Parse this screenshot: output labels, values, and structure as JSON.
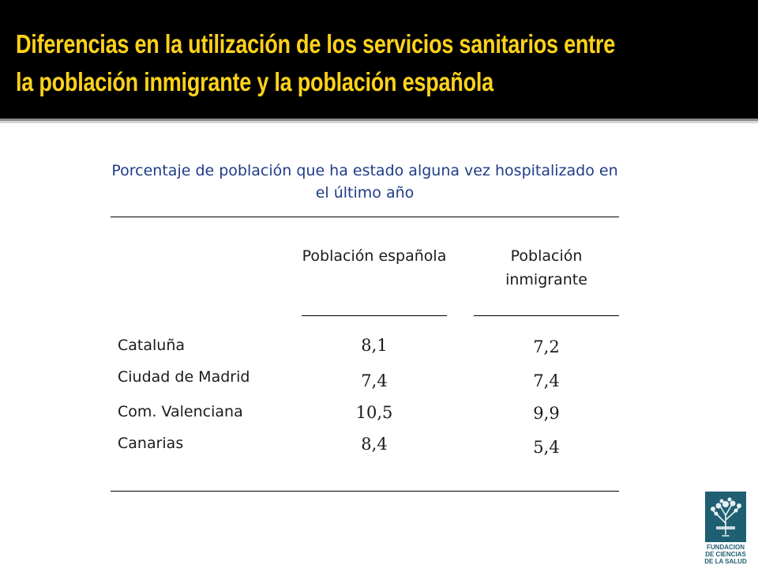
{
  "slide": {
    "title": "Diferencias en la utilización de los servicios sanitarios entre la población inmigrante y la población española",
    "subtitle": "Porcentaje de población que ha estado alguna vez hospitalizado en el último año"
  },
  "table": {
    "columns": [
      "Población española",
      "Población inmigrante"
    ],
    "rows": [
      {
        "region": "Cataluña",
        "espanola": "8,1",
        "inmigrante": "7,2"
      },
      {
        "region": "Ciudad de Madrid",
        "espanola": "7,4",
        "inmigrante": "7,4"
      },
      {
        "region": "Com. Valenciana",
        "espanola": "10,5",
        "inmigrante": "9,9"
      },
      {
        "region": "Canarias",
        "espanola": "8,4",
        "inmigrante": "5,4"
      }
    ]
  },
  "logo": {
    "line1": "FUNDACION",
    "line2": "DE CIENCIAS",
    "line3": "DE LA SALUD",
    "emblem_icon": "tree-icon",
    "color": "#1f5f72"
  },
  "colors": {
    "header_bg": "#000000",
    "title_text": "#ffd21a",
    "subtitle_text": "#1f3c88"
  }
}
